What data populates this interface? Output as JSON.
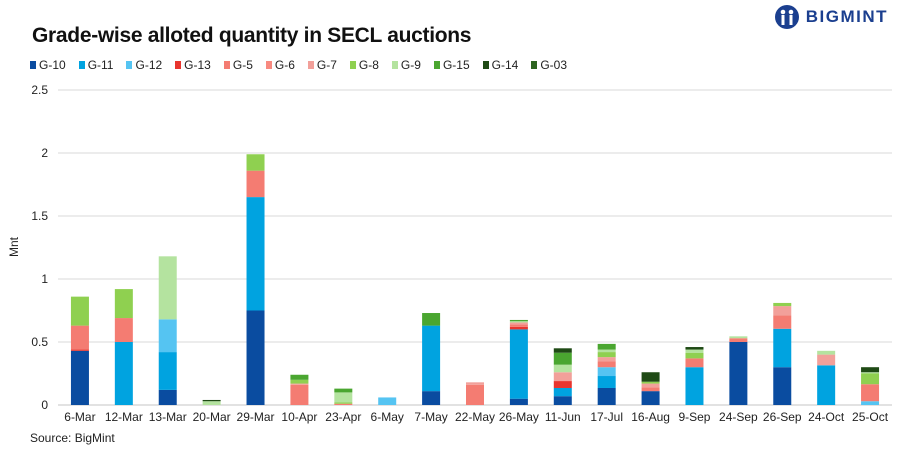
{
  "logo": {
    "text": "BIGMINT"
  },
  "source": "Source: BigMint",
  "chart_data": {
    "type": "bar",
    "stacked": true,
    "title": "Grade-wise alloted quantity in SECL auctions",
    "xlabel": "",
    "ylabel": "Mnt",
    "ylim": [
      0,
      2.5
    ],
    "yticks": [
      "0",
      "0.5",
      "1",
      "1.5",
      "2",
      "2.5"
    ],
    "grid": true,
    "legend_position": "top",
    "categories": [
      "6-Mar",
      "12-Mar",
      "13-Mar",
      "20-Mar",
      "29-Mar",
      "10-Apr",
      "23-Apr",
      "6-May",
      "7-May",
      "22-May",
      "26-May",
      "11-Jun",
      "17-Jul",
      "16-Aug",
      "9-Sep",
      "24-Sep",
      "26-Sep",
      "24-Oct",
      "25-Oct"
    ],
    "series": [
      {
        "name": "G-10",
        "color": "#0a4ca0",
        "values": [
          0.43,
          0,
          0.12,
          0,
          0.75,
          0,
          0,
          0,
          0.11,
          0,
          0.05,
          0.07,
          0.135,
          0.11,
          0,
          0.5,
          0.3,
          0,
          0
        ]
      },
      {
        "name": "G-11",
        "color": "#00a3e0",
        "values": [
          0,
          0.5,
          0.3,
          0,
          0.9,
          0,
          0,
          0,
          0.52,
          0,
          0.55,
          0.065,
          0.095,
          0,
          0.3,
          0,
          0.305,
          0.315,
          0
        ]
      },
      {
        "name": "G-12",
        "color": "#55c4f2",
        "values": [
          0,
          0,
          0.26,
          0,
          0,
          0,
          0,
          0.06,
          0,
          0,
          0,
          0,
          0.07,
          0,
          0,
          0,
          0,
          0,
          0.03
        ]
      },
      {
        "name": "G-13",
        "color": "#e8352e",
        "values": [
          0.01,
          0,
          0,
          0,
          0,
          0,
          0,
          0,
          0,
          0,
          0.02,
          0.055,
          0,
          0,
          0,
          0,
          0,
          0,
          0
        ]
      },
      {
        "name": "G-5",
        "color": "#f47c72",
        "values": [
          0.19,
          0.19,
          0,
          0,
          0.21,
          0.16,
          0.01,
          0,
          0,
          0.16,
          0.02,
          0,
          0.045,
          0.03,
          0.07,
          0.03,
          0.105,
          0,
          0.135
        ]
      },
      {
        "name": "G-6",
        "color": "#f88a80",
        "values": [
          0,
          0,
          0,
          0,
          0,
          0,
          0,
          0,
          0,
          0,
          0,
          0,
          0,
          0,
          0,
          0,
          0,
          0,
          0
        ]
      },
      {
        "name": "G-7",
        "color": "#f2a09a",
        "values": [
          0,
          0,
          0,
          0,
          0,
          0.01,
          0,
          0,
          0,
          0.02,
          0.015,
          0.07,
          0.035,
          0.03,
          0,
          0,
          0.075,
          0.085,
          0
        ]
      },
      {
        "name": "G-8",
        "color": "#8fd050",
        "values": [
          0.23,
          0.23,
          0,
          0,
          0.13,
          0.03,
          0.01,
          0,
          0,
          0,
          0,
          0,
          0.04,
          0.015,
          0.045,
          0,
          0.025,
          0,
          0.085
        ]
      },
      {
        "name": "G-9",
        "color": "#b4e39f",
        "values": [
          0,
          0,
          0.5,
          0.03,
          0,
          0,
          0.08,
          0,
          0,
          0,
          0.01,
          0.06,
          0.02,
          0,
          0.025,
          0.015,
          0,
          0.03,
          0.01
        ]
      },
      {
        "name": "G-15",
        "color": "#4aa630",
        "values": [
          0,
          0,
          0,
          0,
          0,
          0.04,
          0.03,
          0,
          0.1,
          0,
          0.01,
          0.095,
          0.045,
          0,
          0,
          0,
          0,
          0,
          0
        ]
      },
      {
        "name": "G-14",
        "color": "#1f4a15",
        "values": [
          0,
          0,
          0,
          0.01,
          0,
          0,
          0,
          0,
          0,
          0,
          0,
          0.035,
          0,
          0.075,
          0.02,
          0,
          0,
          0,
          0.04
        ]
      },
      {
        "name": "G-03",
        "color": "#2d6420",
        "values": [
          0,
          0,
          0,
          0,
          0,
          0,
          0,
          0,
          0,
          0,
          0,
          0,
          0,
          0,
          0,
          0,
          0,
          0,
          0
        ]
      }
    ]
  }
}
